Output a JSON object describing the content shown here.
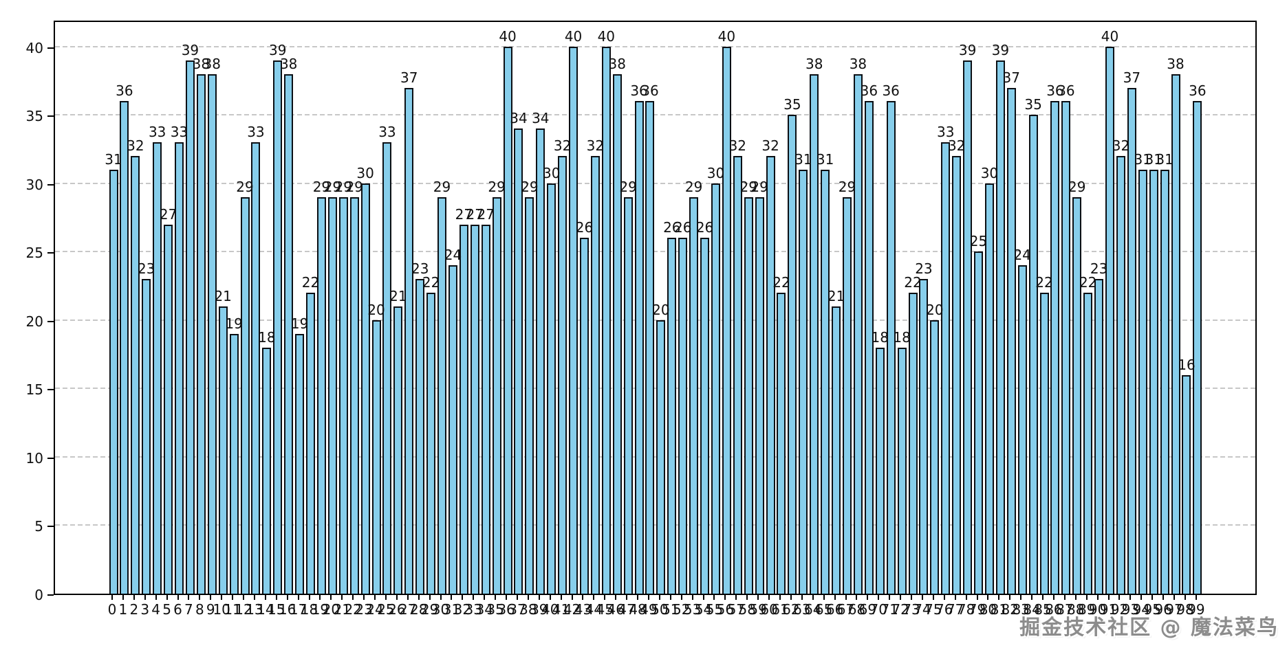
{
  "chart_data": {
    "type": "bar",
    "title": "",
    "xlabel": "",
    "ylabel": "",
    "categories": [
      0,
      1,
      2,
      3,
      4,
      5,
      6,
      7,
      8,
      9,
      10,
      11,
      12,
      13,
      14,
      15,
      16,
      17,
      18,
      19,
      20,
      21,
      22,
      23,
      24,
      25,
      26,
      27,
      28,
      29,
      30,
      31,
      32,
      33,
      34,
      35,
      36,
      37,
      38,
      39,
      40,
      41,
      42,
      43,
      44,
      45,
      46,
      47,
      48,
      49,
      50,
      51,
      52,
      53,
      54,
      55,
      56,
      57,
      58,
      59,
      60,
      61,
      62,
      63,
      64,
      65,
      66,
      67,
      68,
      69,
      70,
      71,
      72,
      73,
      74,
      75,
      76,
      77,
      78,
      79,
      80,
      81,
      82,
      83,
      84,
      85,
      86,
      87,
      88,
      89,
      90,
      91,
      92,
      93,
      94,
      95,
      96,
      97,
      98,
      99
    ],
    "values": [
      31,
      36,
      32,
      23,
      33,
      27,
      33,
      39,
      38,
      38,
      21,
      19,
      29,
      33,
      18,
      39,
      38,
      19,
      22,
      29,
      29,
      29,
      29,
      30,
      20,
      33,
      21,
      37,
      23,
      22,
      29,
      24,
      27,
      27,
      27,
      29,
      40,
      34,
      29,
      34,
      30,
      32,
      40,
      26,
      32,
      40,
      38,
      29,
      36,
      36,
      20,
      26,
      26,
      29,
      26,
      30,
      40,
      32,
      29,
      29,
      32,
      22,
      35,
      31,
      38,
      31,
      21,
      29,
      38,
      36,
      18,
      36,
      18,
      22,
      23,
      20,
      33,
      32,
      39,
      25,
      30,
      39,
      37,
      24,
      35,
      22,
      36,
      36,
      29,
      22,
      23,
      40,
      32,
      37,
      31,
      31,
      31,
      38,
      16,
      36
    ],
    "value_labels_shown": true,
    "yticks": [
      0,
      5,
      10,
      15,
      20,
      25,
      30,
      35,
      40
    ],
    "ylim": [
      0,
      42
    ],
    "grid": "horizontal-dashed",
    "legend_position": "none",
    "bar_color": "#87CEEB",
    "bar_edge_color": "#0b0f14",
    "grid_color": "#c7c7c7"
  },
  "watermark": {
    "text": "掘金技术社区 @ 魔法菜鸟",
    "color": "#8c8c8c"
  }
}
